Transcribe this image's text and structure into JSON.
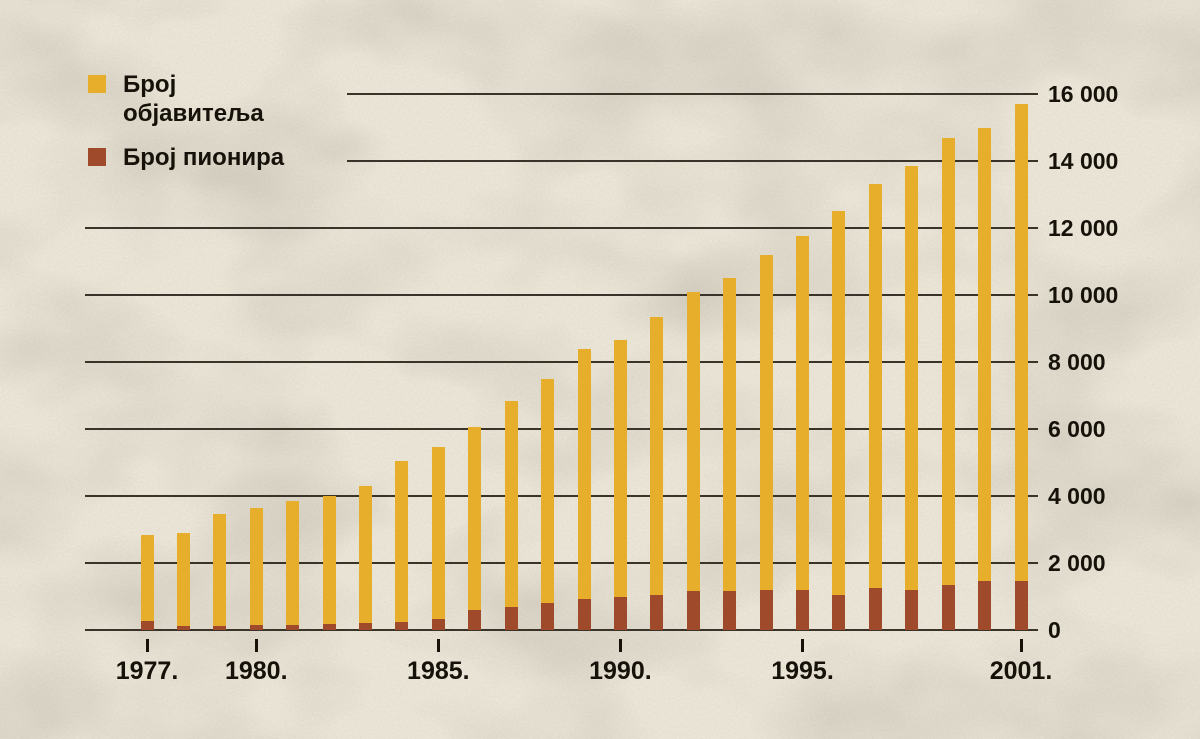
{
  "colors": {
    "background": "#ece7d9",
    "grid": "#39332a",
    "text": "#161209"
  },
  "chart_data": {
    "type": "bar",
    "title": "",
    "xlabel": "",
    "ylabel": "",
    "grid": true,
    "legend_position": "top-left",
    "bar_style": "pioneers bars drawn in front of publishers bars at same baseline",
    "ylim": [
      0,
      16000
    ],
    "y_tick_labels": [
      "0",
      "2 000",
      "4 000",
      "6 000",
      "8 000",
      "10 000",
      "12 000",
      "14 000",
      "16 000"
    ],
    "categories": [
      1977,
      1978,
      1979,
      1980,
      1981,
      1982,
      1983,
      1984,
      1985,
      1986,
      1987,
      1988,
      1989,
      1990,
      1991,
      1992,
      1993,
      1994,
      1995,
      1996,
      1997,
      1998,
      1999,
      2000,
      2001
    ],
    "x_tick_labels": [
      {
        "index": 0,
        "label": "1977."
      },
      {
        "index": 3,
        "label": "1980."
      },
      {
        "index": 8,
        "label": "1985."
      },
      {
        "index": 13,
        "label": "1990."
      },
      {
        "index": 18,
        "label": "1995."
      },
      {
        "index": 24,
        "label": "2001."
      }
    ],
    "series": [
      {
        "name": "Број објавитеља",
        "color": "#e7ae2c",
        "values": [
          2850,
          2900,
          3450,
          3650,
          3850,
          4000,
          4300,
          5050,
          5450,
          6050,
          6850,
          7500,
          8400,
          8650,
          9350,
          10100,
          10500,
          11200,
          11750,
          12500,
          13300,
          13850,
          14700,
          15000,
          15700
        ]
      },
      {
        "name": "Број пионира",
        "color": "#a04a2c",
        "values": [
          270,
          120,
          120,
          150,
          150,
          180,
          210,
          240,
          330,
          600,
          700,
          800,
          930,
          1000,
          1050,
          1150,
          1150,
          1200,
          1200,
          1050,
          1250,
          1200,
          1350,
          1450,
          1450
        ]
      }
    ]
  }
}
